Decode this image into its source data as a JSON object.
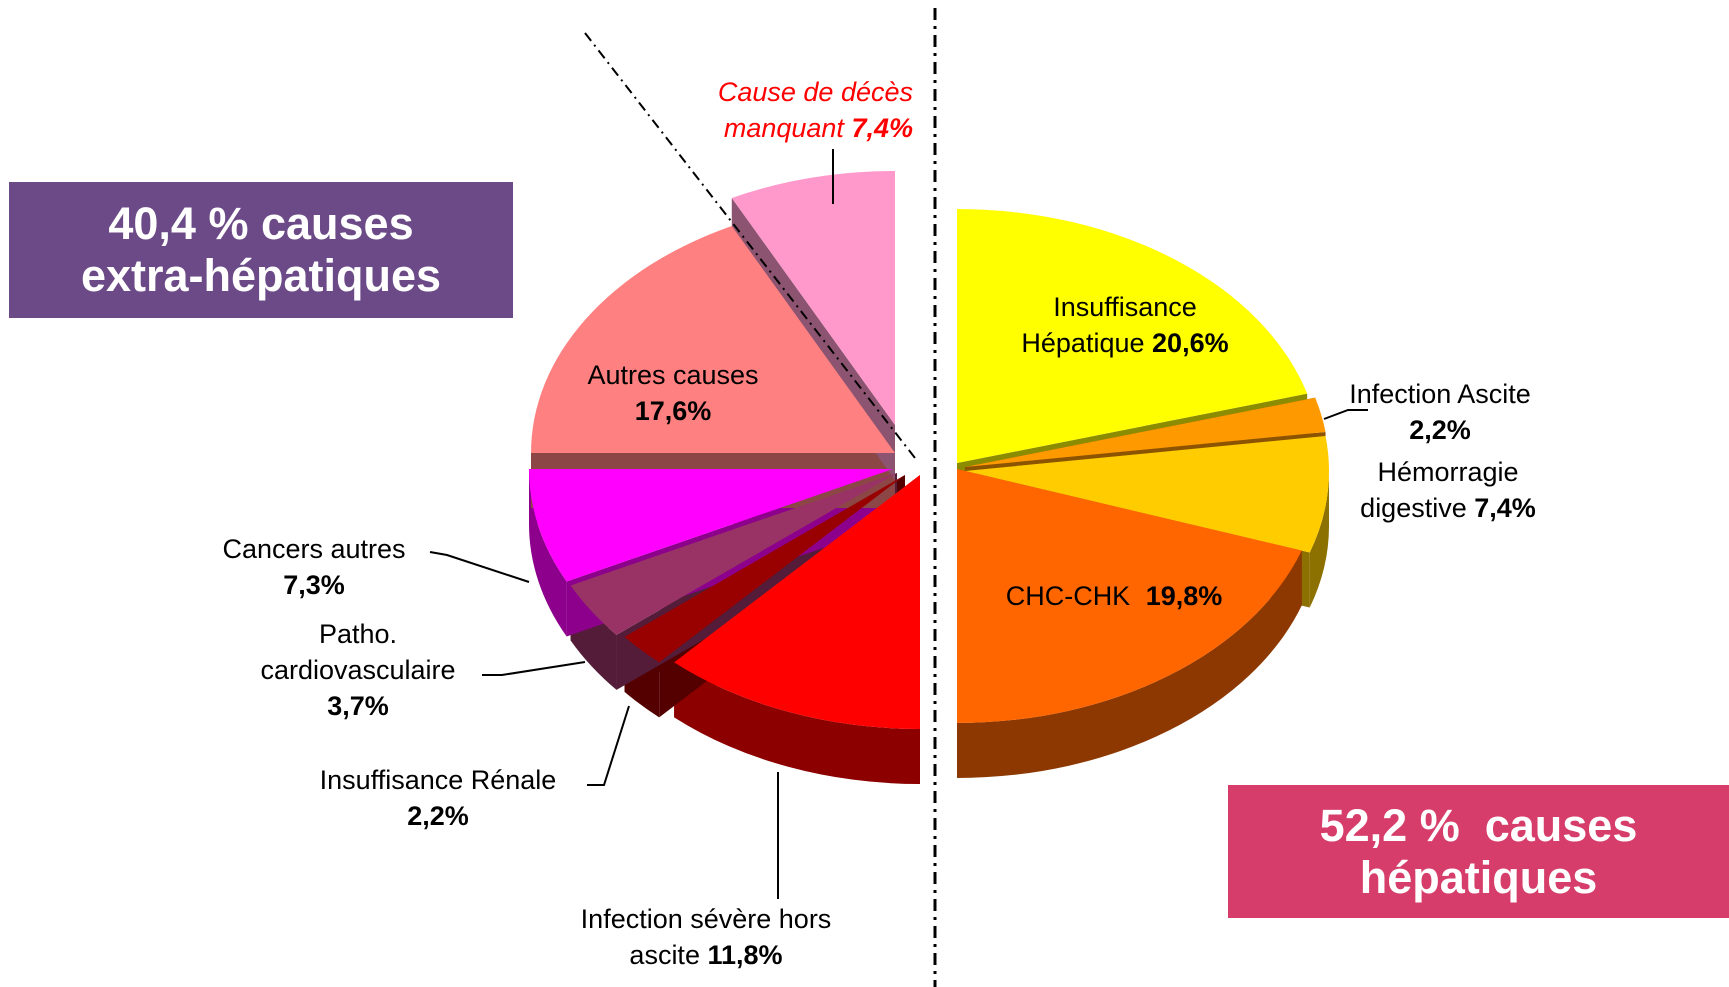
{
  "chart_data": {
    "type": "pie3d",
    "categories": [
      "Insuffisance Hépatique",
      "Infection Ascite",
      "Hémorragie digestive",
      "CHC-CHK",
      "Infection sévère hors ascite",
      "Insuffisance Rénale",
      "Patho. cardiovasculaire",
      "Cancers autres",
      "Autres causes",
      "Cause de décès manquant"
    ],
    "values": [
      20.6,
      2.2,
      7.4,
      19.8,
      11.8,
      2.2,
      3.7,
      7.3,
      17.6,
      7.4
    ],
    "value_labels": [
      "20,6%",
      "2,2%",
      "7,4%",
      "19,8%",
      "11,8%",
      "2,2%",
      "3,7%",
      "7,3%",
      "17,6%",
      "7,4%"
    ],
    "colors": [
      "#ffff00",
      "#ff9900",
      "#ffcc00",
      "#ff6600",
      "#ff0000",
      "#990000",
      "#993366",
      "#ff00ff",
      "#ff8080",
      "#ff99cc"
    ],
    "annotations": [
      "40,4 % causes extra-hépatiques",
      "52,2 %  causes hépatiques"
    ]
  }
}
